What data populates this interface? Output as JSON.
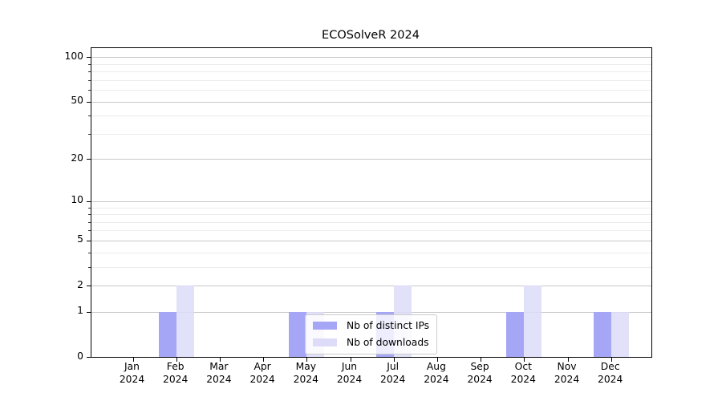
{
  "chart_data": {
    "type": "bar",
    "title": "ECOSolveR 2024",
    "xlabel": "",
    "ylabel": "",
    "x_tick_months": [
      "Jan",
      "Feb",
      "Mar",
      "Apr",
      "May",
      "Jun",
      "Jul",
      "Aug",
      "Sep",
      "Oct",
      "Nov",
      "Dec"
    ],
    "x_tick_year": "2024",
    "series": [
      {
        "name": "Nb of distinct IPs",
        "color": "#a6a6f6",
        "values": [
          0,
          1,
          0,
          0,
          1,
          0,
          1,
          0,
          0,
          1,
          0,
          1
        ]
      },
      {
        "name": "Nb of downloads",
        "color": "#dcdcf9",
        "values": [
          0,
          2,
          0,
          0,
          1,
          0,
          2,
          0,
          0,
          2,
          0,
          1
        ]
      }
    ],
    "yscale": "log1p",
    "ylim": [
      0,
      115
    ],
    "y_major_ticks": [
      0,
      1,
      2,
      5,
      10,
      20,
      50,
      100
    ],
    "y_minor_ticks": [
      3,
      4,
      6,
      7,
      8,
      9,
      30,
      40,
      60,
      70,
      80,
      90
    ],
    "grid": "horizontal, major and minor",
    "legend_position": "lower center (inside plot)"
  },
  "colors": {
    "background": "#ffffff",
    "axis": "#000000",
    "grid_major": "#c8c8c8",
    "grid_minor": "#ececec",
    "legend_border": "#cccccc",
    "legend_background": "rgba(255,255,255,0.8)",
    "text": "#000000"
  }
}
